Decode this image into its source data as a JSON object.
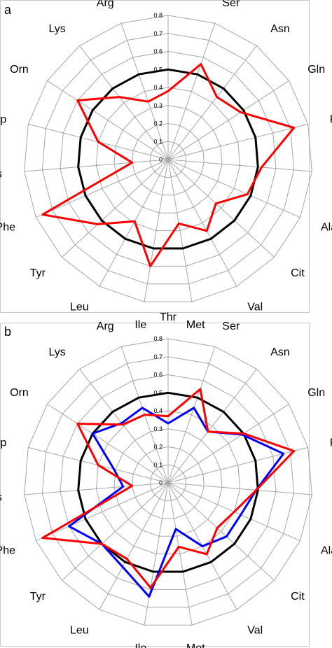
{
  "chart_data": [
    {
      "type": "radar",
      "panel_label": "a",
      "categories": [
        "Thr",
        "Ser",
        "Asn",
        "Gln",
        "Pro",
        "Gly",
        "Ala",
        "Cit",
        "Val",
        "Met",
        "Ile",
        "Leu",
        "Tyr",
        "Phe",
        "His",
        "Trp",
        "Orn",
        "Lys",
        "Arg"
      ],
      "ticks": [
        "0",
        "0.1",
        "0.2",
        "0.3",
        "0.4",
        "0.5",
        "0.6",
        "0.7",
        "0.8"
      ],
      "rlim": [
        0,
        0.8
      ],
      "grid": true,
      "series": [
        {
          "color": "#000000",
          "values": [
            0.5,
            0.5,
            0.5,
            0.5,
            0.5,
            0.5,
            0.5,
            0.5,
            0.5,
            0.5,
            0.5,
            0.5,
            0.5,
            0.5,
            0.5,
            0.5,
            0.5,
            0.5,
            0.5
          ]
        },
        {
          "color": "#ff0000",
          "values": [
            0.38,
            0.56,
            0.44,
            0.48,
            0.72,
            0.52,
            0.48,
            0.36,
            0.45,
            0.36,
            0.6,
            0.39,
            0.53,
            0.76,
            0.2,
            0.4,
            0.6,
            0.44,
            0.34
          ]
        }
      ]
    },
    {
      "type": "radar",
      "panel_label": "b",
      "categories": [
        "Thr",
        "Ser",
        "Asn",
        "Gln",
        "Pro",
        "Gly",
        "Ala",
        "Cit",
        "Val",
        "Met",
        "Ile",
        "Leu",
        "Tyr",
        "Phe",
        "His",
        "Trp",
        "Orn",
        "Lys",
        "Arg"
      ],
      "ticks": [
        "0",
        "0.1",
        "0.2",
        "0.3",
        "0.4",
        "0.5",
        "0.6",
        "0.7",
        "0.8"
      ],
      "rlim": [
        0,
        0.8
      ],
      "grid": true,
      "series": [
        {
          "color": "#000000",
          "values": [
            0.5,
            0.5,
            0.5,
            0.5,
            0.5,
            0.5,
            0.5,
            0.5,
            0.5,
            0.5,
            0.5,
            0.5,
            0.5,
            0.5,
            0.5,
            0.5,
            0.5,
            0.5,
            0.5
          ]
        },
        {
          "color": "#0000ff",
          "values": [
            0.33,
            0.44,
            0.36,
            0.49,
            0.66,
            0.49,
            0.44,
            0.44,
            0.4,
            0.26,
            0.64,
            0.53,
            0.5,
            0.6,
            0.25,
            0.31,
            0.5,
            0.42,
            0.44
          ]
        },
        {
          "color": "#ff0000",
          "values": [
            0.37,
            0.55,
            0.36,
            0.5,
            0.72,
            0.49,
            0.4,
            0.37,
            0.45,
            0.36,
            0.59,
            0.48,
            0.5,
            0.76,
            0.2,
            0.4,
            0.6,
            0.41,
            0.4
          ]
        }
      ]
    }
  ]
}
